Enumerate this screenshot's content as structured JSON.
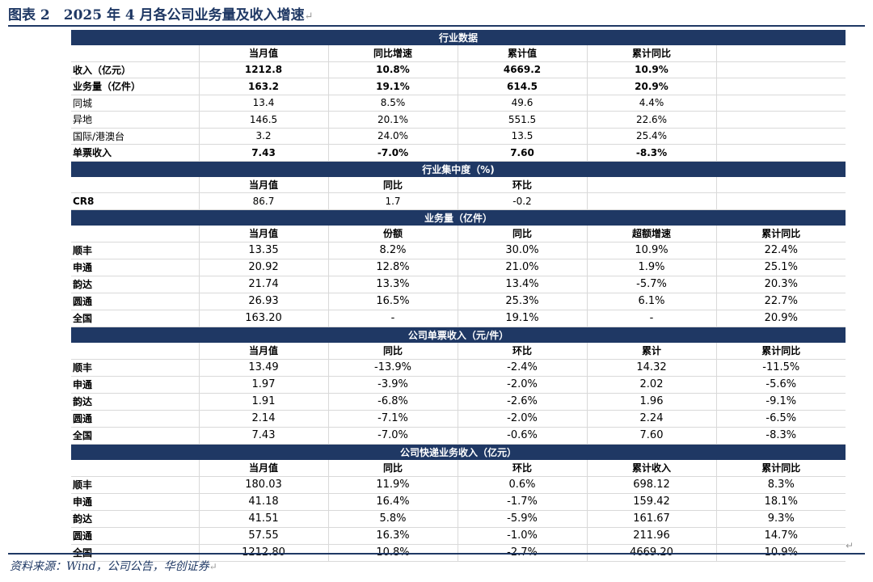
{
  "title": "图表 2　2025 年 4 月各公司业务量及收入增速",
  "source": "资料来源：Wind，公司公告，华创证券",
  "section1": {
    "band": "行业数据",
    "headers": [
      "",
      "当月值",
      "同比增速",
      "累计值",
      "累计同比",
      ""
    ],
    "rows": [
      [
        "收入（亿元）",
        "1212.8",
        "10.8%",
        "4669.2",
        "10.9%",
        ""
      ],
      [
        "业务量（亿件）",
        "163.2",
        "19.1%",
        "614.5",
        "20.9%",
        ""
      ],
      [
        "同城",
        "13.4",
        "8.5%",
        "49.6",
        "4.4%",
        ""
      ],
      [
        "异地",
        "146.5",
        "20.1%",
        "551.5",
        "22.6%",
        ""
      ],
      [
        "国际/港澳台",
        "3.2",
        "24.0%",
        "13.5",
        "25.4%",
        ""
      ],
      [
        "单票收入",
        "7.43",
        "-7.0%",
        "7.60",
        "-8.3%",
        ""
      ]
    ]
  },
  "section2": {
    "band": "行业集中度（%)",
    "headers": [
      "",
      "当月值",
      "同比",
      "环比",
      "",
      ""
    ],
    "rows": [
      [
        "CR8",
        "86.7",
        "1.7",
        "-0.2",
        "",
        ""
      ]
    ]
  },
  "section3": {
    "band": "业务量（亿件）",
    "headers": [
      "",
      "当月值",
      "份额",
      "同比",
      "超额增速",
      "累计同比"
    ],
    "rows": [
      [
        "顺丰",
        "13.35",
        "8.2%",
        "30.0%",
        "10.9%",
        "22.4%"
      ],
      [
        "申通",
        "20.92",
        "12.8%",
        "21.0%",
        "1.9%",
        "25.1%"
      ],
      [
        "韵达",
        "21.74",
        "13.3%",
        "13.4%",
        "-5.7%",
        "20.3%"
      ],
      [
        "圆通",
        "26.93",
        "16.5%",
        "25.3%",
        "6.1%",
        "22.7%"
      ],
      [
        "全国",
        "163.20",
        "-",
        "19.1%",
        "-",
        "20.9%"
      ]
    ]
  },
  "section4": {
    "band": "公司单票收入（元/件）",
    "headers": [
      "",
      "当月值",
      "同比",
      "环比",
      "累计",
      "累计同比"
    ],
    "rows": [
      [
        "顺丰",
        "13.49",
        "-13.9%",
        "-2.4%",
        "14.32",
        "-11.5%"
      ],
      [
        "申通",
        "1.97",
        "-3.9%",
        "-2.0%",
        "2.02",
        "-5.6%"
      ],
      [
        "韵达",
        "1.91",
        "-6.8%",
        "-2.6%",
        "1.96",
        "-9.1%"
      ],
      [
        "圆通",
        "2.14",
        "-7.1%",
        "-2.0%",
        "2.24",
        "-6.5%"
      ],
      [
        "全国",
        "7.43",
        "-7.0%",
        "-0.6%",
        "7.60",
        "-8.3%"
      ]
    ]
  },
  "section5": {
    "band": "公司快递业务收入（亿元）",
    "headers": [
      "",
      "当月值",
      "同比",
      "环比",
      "累计收入",
      "累计同比"
    ],
    "rows": [
      [
        "顺丰",
        "180.03",
        "11.9%",
        "0.6%",
        "698.12",
        "8.3%"
      ],
      [
        "申通",
        "41.18",
        "16.4%",
        "-1.7%",
        "159.42",
        "18.1%"
      ],
      [
        "韵达",
        "41.51",
        "5.8%",
        "-5.9%",
        "161.67",
        "9.3%"
      ],
      [
        "圆通",
        "57.55",
        "16.3%",
        "-1.0%",
        "211.96",
        "14.7%"
      ],
      [
        "全国",
        "1212.80",
        "10.8%",
        "-2.7%",
        "4669.20",
        "10.9%"
      ]
    ]
  }
}
